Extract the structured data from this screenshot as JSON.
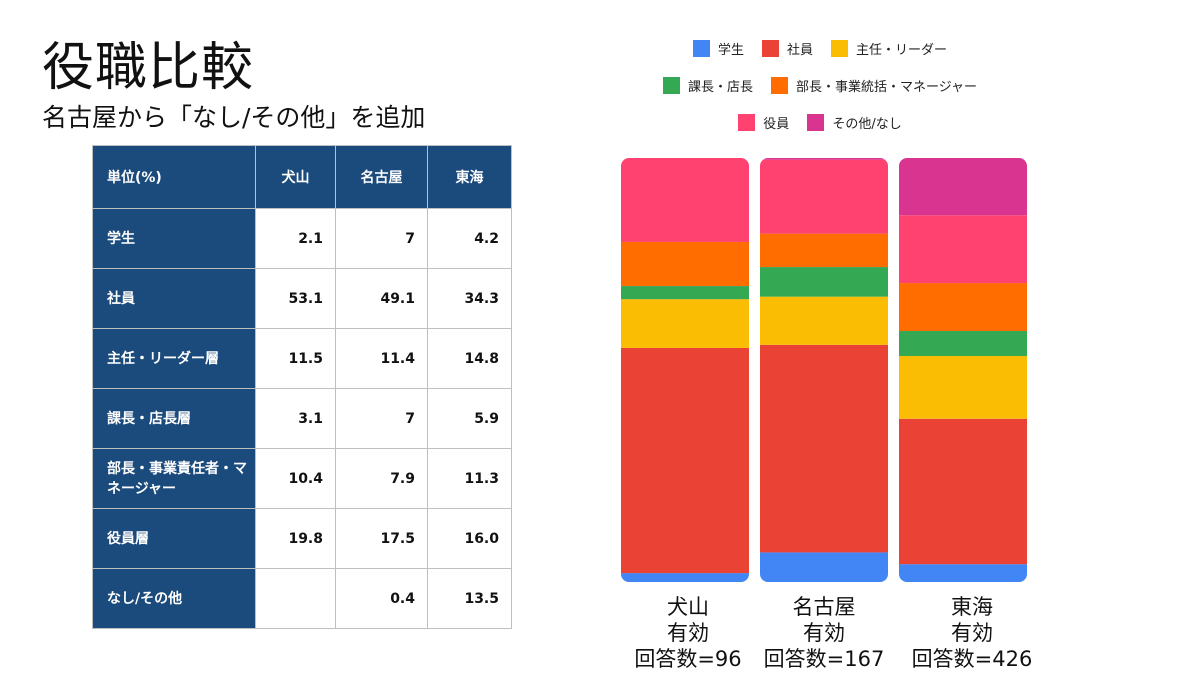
{
  "title": "役職比較",
  "subtitle": "名古屋から「なし/その他」を追加",
  "table": {
    "unit_header": "単位(%)",
    "columns": [
      "犬山",
      "名古屋",
      "東海"
    ],
    "rows": [
      {
        "label": "学生",
        "values": [
          "2.1",
          "7",
          "4.2"
        ]
      },
      {
        "label": "社員",
        "values": [
          "53.1",
          "49.1",
          "34.3"
        ]
      },
      {
        "label": "主任・リーダー層",
        "values": [
          "11.5",
          "11.4",
          "14.8"
        ]
      },
      {
        "label": "課長・店長層",
        "values": [
          "3.1",
          "7",
          "5.9"
        ]
      },
      {
        "label": "部長・事業責任者・マネージャー",
        "values": [
          "10.4",
          "7.9",
          "11.3"
        ]
      },
      {
        "label": "役員層",
        "values": [
          "19.8",
          "17.5",
          "16.0"
        ]
      },
      {
        "label": "なし/その他",
        "values": [
          "",
          "0.4",
          "13.5"
        ]
      }
    ]
  },
  "chart_data": {
    "type": "bar",
    "stacked": true,
    "normalized_percent": true,
    "legend_position": "top",
    "grid": false,
    "categories": [
      {
        "name": "犬山",
        "line2": "有効",
        "line3": "回答数=96"
      },
      {
        "name": "名古屋",
        "line2": "有効",
        "line3": "回答数=167"
      },
      {
        "name": "東海",
        "line2": "有効",
        "line3": "回答数=426"
      }
    ],
    "series": [
      {
        "name": "学生",
        "color": "#4285f4",
        "values": [
          2.1,
          7,
          4.2
        ]
      },
      {
        "name": "社員",
        "color": "#ea4335",
        "values": [
          53.1,
          49.1,
          34.3
        ]
      },
      {
        "name": "主任・リーダー",
        "color": "#fbbc04",
        "values": [
          11.5,
          11.4,
          14.8
        ]
      },
      {
        "name": "課長・店長",
        "color": "#34a853",
        "values": [
          3.1,
          7,
          5.9
        ]
      },
      {
        "name": "部長・事業統括・マネージャー",
        "color": "#ff6d01",
        "values": [
          10.4,
          7.9,
          11.3
        ]
      },
      {
        "name": "役員",
        "color": "#ff4270",
        "values": [
          19.8,
          17.5,
          16.0
        ]
      },
      {
        "name": "その他/なし",
        "color": "#d9348f",
        "values": [
          0,
          0.4,
          13.5
        ]
      }
    ]
  }
}
